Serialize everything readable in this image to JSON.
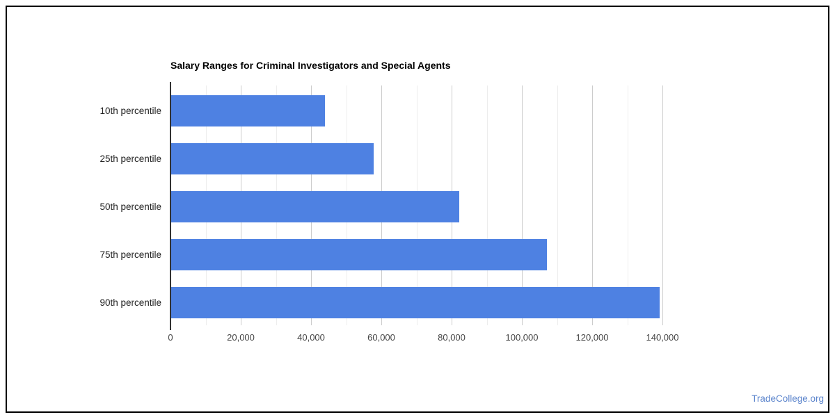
{
  "title": "Salary Ranges for Criminal Investigators and Special Agents",
  "footer": {
    "link_label": "TradeCollege.org"
  },
  "chart_data": {
    "type": "bar",
    "orientation": "horizontal",
    "title": "Salary Ranges for Criminal Investigators and Special Agents",
    "categories": [
      "10th percentile",
      "25th percentile",
      "50th percentile",
      "75th percentile",
      "90th percentile"
    ],
    "values": [
      43800,
      57600,
      82000,
      107000,
      139000
    ],
    "xlabel": "",
    "ylabel": "",
    "xlim": [
      0,
      147500
    ],
    "x_ticks": [
      0,
      20000,
      40000,
      60000,
      80000,
      100000,
      120000,
      140000
    ],
    "x_tick_labels": [
      "0",
      "20,000",
      "40,000",
      "60,000",
      "80,000",
      "100,000",
      "120,000",
      "140,000"
    ],
    "minor_grid_step": 10000,
    "major_grid_step": 20000,
    "grid": true,
    "legend": "none",
    "colors": {
      "bar": "#4e81e2",
      "major_grid": "#cccccc",
      "minor_grid": "#ededed",
      "axis_line": "#333333",
      "tick_label": "#444444",
      "category_label": "#222222",
      "title": "#000000",
      "footer_link": "#5b84cc"
    }
  }
}
